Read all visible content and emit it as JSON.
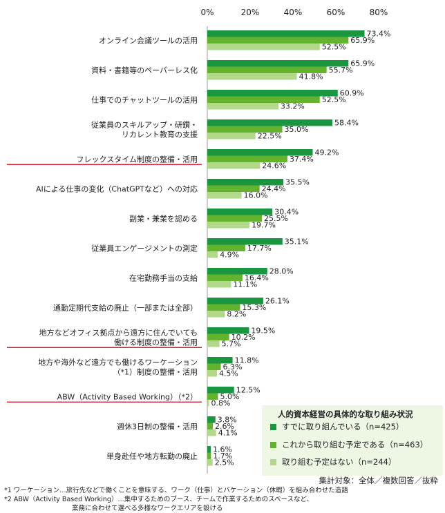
{
  "chart_data": {
    "type": "bar",
    "orientation": "horizontal",
    "x_ticks": [
      "0%",
      "20%",
      "40%",
      "60%",
      "80%"
    ],
    "xlim": [
      0,
      80
    ],
    "grid": false,
    "categories": [
      {
        "lines": [
          "オンライン会議ツールの活用"
        ],
        "highlight": false
      },
      {
        "lines": [
          "資料・書籍等のペーパーレス化"
        ],
        "highlight": false
      },
      {
        "lines": [
          "仕事でのチャットツールの活用"
        ],
        "highlight": false
      },
      {
        "lines": [
          "従業員のスキルアップ・研鑽・",
          "リカレント教育の支援"
        ],
        "highlight": false
      },
      {
        "lines": [
          "フレックスタイム制度の整備・活用"
        ],
        "highlight": true
      },
      {
        "lines": [
          "AIによる仕事の変化（ChatGPTなど）への対応"
        ],
        "highlight": false
      },
      {
        "lines": [
          "副業・兼業を認める"
        ],
        "highlight": false
      },
      {
        "lines": [
          "従業員エンゲージメントの測定"
        ],
        "highlight": false
      },
      {
        "lines": [
          "在宅勤務手当の支給"
        ],
        "highlight": false
      },
      {
        "lines": [
          "通勤定期代支給の廃止（一部または全部）"
        ],
        "highlight": false
      },
      {
        "lines": [
          "地方などオフィス拠点から遠方に住んでいても",
          "働ける制度の整備・活用"
        ],
        "highlight": true
      },
      {
        "lines": [
          "地方や海外など遠方でも働けるワーケーション",
          "（*1）制度の整備・活用"
        ],
        "highlight": false
      },
      {
        "lines": [
          "ABW（Activity Based Working）（*2）"
        ],
        "highlight": true
      },
      {
        "lines": [
          "週休3日制の整備・活用"
        ],
        "highlight": false
      },
      {
        "lines": [
          "単身赴任や地方転勤の廃止"
        ],
        "highlight": false
      }
    ],
    "series": [
      {
        "name": "すでに取り組んでいる（n=425）",
        "color": "#1a9641",
        "values": [
          73.4,
          65.9,
          60.9,
          58.4,
          49.2,
          35.5,
          30.4,
          35.1,
          28.0,
          26.1,
          19.5,
          11.8,
          12.5,
          3.8,
          1.6
        ]
      },
      {
        "name": "これから取り組む予定である（n=463）",
        "color": "#63b32e",
        "values": [
          65.9,
          55.7,
          52.5,
          35.0,
          37.4,
          24.4,
          25.5,
          17.7,
          16.4,
          15.3,
          10.2,
          6.3,
          5.0,
          2.6,
          1.7
        ]
      },
      {
        "name": "取り組む予定はない（n=244）",
        "color": "#b2d98a",
        "values": [
          52.5,
          41.8,
          33.2,
          22.5,
          24.6,
          16.0,
          19.7,
          4.9,
          11.1,
          8.2,
          5.7,
          4.5,
          0.8,
          4.1,
          2.5
        ]
      }
    ],
    "legend_title": "人的資本経営の具体的な取り組み状況",
    "legend_position": "bottom-right",
    "highlight_color": "#d0021b"
  },
  "notes": {
    "scope": "集計対象：全体／複数回答／抜粋",
    "footnote1": "*1 ワーケーション…旅行先などで働くことを意味する、ワーク（仕事）とバケーション（休暇）を組み合わせた造語",
    "footnote2a": "*2 ABW（Activity Based Working）…集中するためのブース、チームで作業するためのスペースなど、",
    "footnote2b": "業務に合わせて選べる多様なワークエリアを設ける"
  }
}
